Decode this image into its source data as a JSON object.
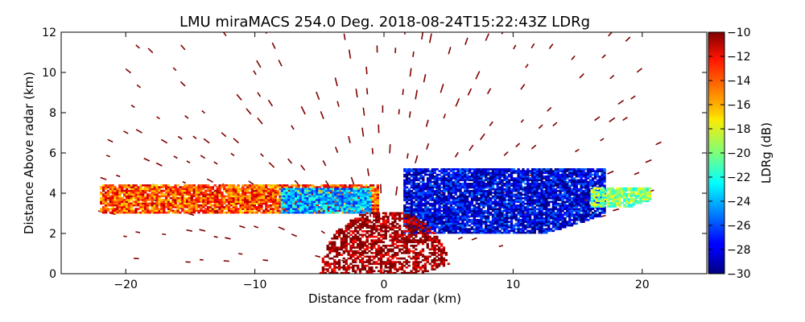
{
  "chart_data": {
    "type": "heatmap",
    "title": "LMU miraMACS 254.0 Deg. 2018-08-24T15:22:43Z  LDRg",
    "xlabel": "Distance from radar (km)",
    "ylabel": "Distance Above radar  (km)",
    "xlim": [
      -25,
      25
    ],
    "ylim": [
      0,
      12
    ],
    "xticks": [
      -20,
      -10,
      0,
      10,
      20
    ],
    "xtick_labels": [
      "−20",
      "−10",
      "0",
      "10",
      "20"
    ],
    "yticks": [
      0,
      2,
      4,
      6,
      8,
      10,
      12
    ],
    "ytick_labels": [
      "0",
      "2",
      "4",
      "6",
      "8",
      "10",
      "12"
    ],
    "colorbar": {
      "label": "LDRg (dB)",
      "range": [
        -30,
        -10
      ],
      "colormap": "jet",
      "ticks": [
        -10,
        -12,
        -14,
        -16,
        -18,
        -20,
        -22,
        -24,
        -26,
        -28,
        -30
      ],
      "tick_labels": [
        "−10",
        "−12",
        "−14",
        "−16",
        "−18",
        "−20",
        "−22",
        "−24",
        "−26",
        "−28",
        "−30"
      ]
    },
    "scan": {
      "elevation_deg": 254.0,
      "time": "2018-08-24T15:22:43Z",
      "lower_edge": {
        "x_start": 3,
        "y_start": 0,
        "x_end": 21.5,
        "y_end": 3.8
      },
      "noise_field": {
        "value_db": -10,
        "max_range_km": 22,
        "ring_spacing_km": 1.0
      }
    },
    "regions": [
      {
        "name": "cloud-layer-west",
        "x_range": [
          -22,
          -0.5
        ],
        "y_range": [
          3.0,
          4.4
        ],
        "ldr_db": -14
      },
      {
        "name": "cloud-layer-west-low-ldr",
        "x_range": [
          -8,
          -1
        ],
        "y_range": [
          3.0,
          4.2
        ],
        "ldr_db": -24
      },
      {
        "name": "cloud-layer-east-low-ldr",
        "x_range": [
          1.5,
          17
        ],
        "y_range": [
          2.0,
          5.2
        ],
        "ldr_db": -28
      },
      {
        "name": "cloud-layer-east-edge",
        "x_range": [
          16,
          20.5
        ],
        "y_range": [
          3.3,
          4.2
        ],
        "ldr_db": -20
      },
      {
        "name": "near-radar-echo",
        "x_range": [
          -5,
          5
        ],
        "y_range": [
          0,
          3.0
        ],
        "ldr_db": -10
      }
    ]
  }
}
